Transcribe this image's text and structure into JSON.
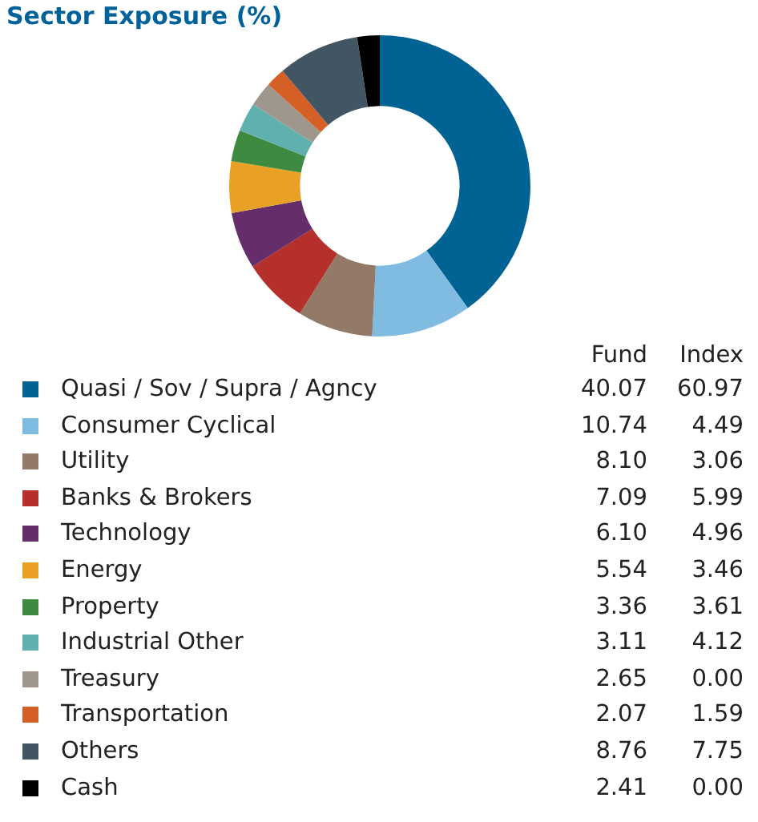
{
  "chart_data": [
    {
      "type": "donut",
      "title": "Sector Exposure (%)",
      "categories": [
        "Quasi / Sov / Supra / Agncy",
        "Consumer Cyclical",
        "Utility",
        "Banks & Brokers",
        "Technology",
        "Energy",
        "Property",
        "Industrial Other",
        "Treasury",
        "Transportation",
        "Others",
        "Cash"
      ],
      "colors": [
        "#006394",
        "#80bce2",
        "#937967",
        "#b52f2b",
        "#652d69",
        "#e8a125",
        "#3e8a41",
        "#5fb0af",
        "#9f968d",
        "#d45f27",
        "#425563",
        "#000000"
      ],
      "series": [
        {
          "name": "Fund",
          "values": [
            40.07,
            10.74,
            8.1,
            7.09,
            6.1,
            5.54,
            3.36,
            3.11,
            2.65,
            2.07,
            8.76,
            2.41
          ],
          "value_labels": [
            "40.07",
            "10.74",
            "8.10",
            "7.09",
            "6.10",
            "5.54",
            "3.36",
            "3.11",
            "2.65",
            "2.07",
            "8.76",
            "2.41"
          ]
        }
      ],
      "legend": "bottom"
    },
    {
      "type": "other",
      "title": "Index",
      "annotations": [
        "60.97",
        "4.49",
        "3.06",
        "5.99",
        "4.96",
        "3.46",
        "3.61",
        "4.12",
        "0.00",
        "1.59",
        "7.75",
        "0.00"
      ]
    }
  ]
}
